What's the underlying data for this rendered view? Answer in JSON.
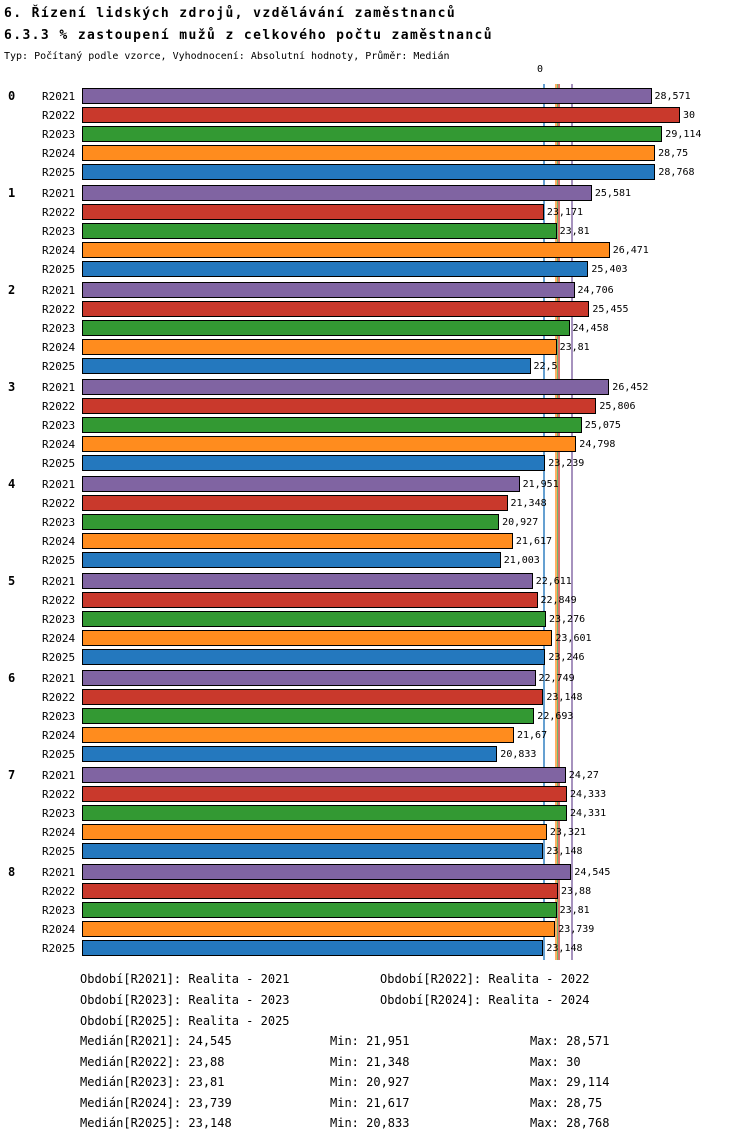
{
  "header": {
    "title": "6. Řízení lidských zdrojů, vzdělávání zaměstnanců",
    "subtitle": "6.3.3 % zastoupení mužů z celkového počtu zaměstnanců",
    "meta": "Typ: Počítaný podle vzorce, Vyhodnocení: Absolutní hodnoty, Průměr: Medián"
  },
  "chart_data": {
    "type": "bar",
    "orientation": "horizontal",
    "title": "6.3.3 % zastoupení mužů z celkového počtu zaměstnanců",
    "xlabel": "",
    "ylabel": "",
    "xlim": [
      0,
      30
    ],
    "axis_zero_label": "0",
    "grid": false,
    "legend_position": "bottom",
    "series": [
      {
        "name": "R2021",
        "color": "#8064A2",
        "period": "Realita - 2021",
        "median": "24,545",
        "min": "21,951",
        "max": "28,571"
      },
      {
        "name": "R2022",
        "color": "#C9392C",
        "period": "Realita - 2022",
        "median": "23,88",
        "min": "21,348",
        "max": "30"
      },
      {
        "name": "R2023",
        "color": "#339933",
        "period": "Realita - 2023",
        "median": "23,81",
        "min": "20,927",
        "max": "29,114"
      },
      {
        "name": "R2024",
        "color": "#FF8C1E",
        "period": "Realita - 2024",
        "median": "23,739",
        "min": "21,617",
        "max": "28,75"
      },
      {
        "name": "R2025",
        "color": "#2478BE",
        "period": "Realita - 2025",
        "median": "23,148",
        "min": "20,833",
        "max": "28,768"
      }
    ],
    "groups": [
      {
        "label": "0",
        "values": [
          "28,571",
          "30",
          "29,114",
          "28,75",
          "28,768"
        ]
      },
      {
        "label": "1",
        "values": [
          "25,581",
          "23,171",
          "23,81",
          "26,471",
          "25,403"
        ]
      },
      {
        "label": "2",
        "values": [
          "24,706",
          "25,455",
          "24,458",
          "23,81",
          "22,5"
        ]
      },
      {
        "label": "3",
        "values": [
          "26,452",
          "25,806",
          "25,075",
          "24,798",
          "23,239"
        ]
      },
      {
        "label": "4",
        "values": [
          "21,951",
          "21,348",
          "20,927",
          "21,617",
          "21,003"
        ]
      },
      {
        "label": "5",
        "values": [
          "22,611",
          "22,849",
          "23,276",
          "23,601",
          "23,246"
        ]
      },
      {
        "label": "6",
        "values": [
          "22,749",
          "23,148",
          "22,693",
          "21,67",
          "20,833"
        ]
      },
      {
        "label": "7",
        "values": [
          "24,27",
          "24,333",
          "24,331",
          "23,321",
          "23,148"
        ]
      },
      {
        "label": "8",
        "values": [
          "24,545",
          "23,88",
          "23,81",
          "23,739",
          "23,148"
        ]
      }
    ]
  },
  "legend_rows": [
    [
      "Období[R2021]: Realita - 2021",
      "Období[R2022]: Realita - 2022"
    ],
    [
      "Období[R2023]: Realita - 2023",
      "Období[R2024]: Realita - 2024"
    ],
    [
      "Období[R2025]: Realita - 2025"
    ]
  ],
  "stats_rows": [
    [
      "Medián[R2021]: 24,545",
      "Min: 21,951",
      "Max: 28,571"
    ],
    [
      "Medián[R2022]: 23,88",
      "Min: 21,348",
      "Max: 30"
    ],
    [
      "Medián[R2023]: 23,81",
      "Min: 20,927",
      "Max: 29,114"
    ],
    [
      "Medián[R2024]: 23,739",
      "Min: 21,617",
      "Max: 28,75"
    ],
    [
      "Medián[R2025]: 23,148",
      "Min: 20,833",
      "Max: 28,768"
    ]
  ]
}
